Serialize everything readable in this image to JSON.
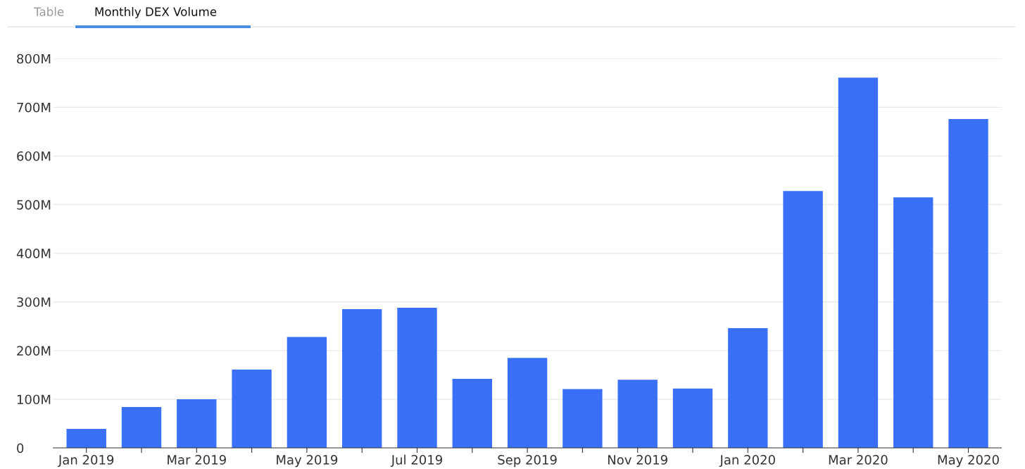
{
  "chart_data": {
    "type": "bar",
    "title": "Monthly DEX Volume",
    "annotations": [
      "Table"
    ],
    "categories": [
      "Jan 2019",
      null,
      "Mar 2019",
      null,
      "May 2019",
      null,
      "Jul 2019",
      null,
      "Sep 2019",
      null,
      "Nov 2019",
      null,
      "Jan 2020",
      null,
      "Mar 2020",
      null,
      "May 2020"
    ],
    "values": [
      39,
      84,
      100,
      161,
      228,
      285,
      288,
      142,
      185,
      121,
      140,
      122,
      246,
      528,
      761,
      515,
      676
    ],
    "color": "#3a70f7",
    "ylim": [
      0,
      800
    ],
    "yticks": [
      0,
      {
        "value": 100,
        "label": "100M"
      },
      {
        "value": 200,
        "label": "200M"
      },
      {
        "value": 300,
        "label": "300M"
      },
      {
        "value": 400,
        "label": "400M"
      },
      {
        "value": 500,
        "label": "500M"
      },
      {
        "value": 600,
        "label": "600M"
      },
      {
        "value": 700,
        "label": "700M"
      },
      {
        "value": 800,
        "label": "800M"
      }
    ],
    "grid": "y",
    "legend": false
  }
}
